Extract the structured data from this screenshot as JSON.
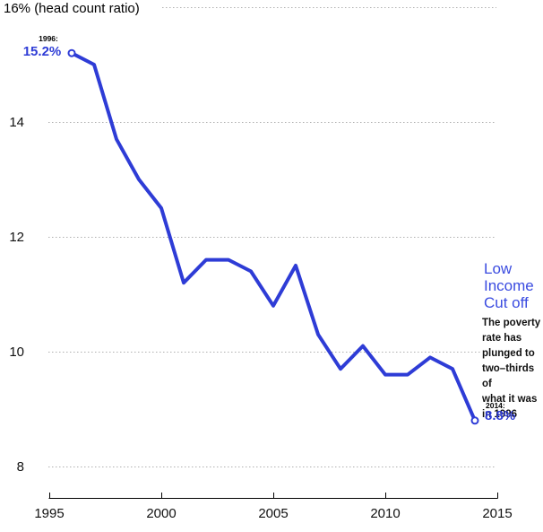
{
  "title": "16% (head count ratio)",
  "colors": {
    "accent_blue": "#2e3cd6",
    "series_label_blue": "#3a4be0",
    "gridline_gray": "#b0b0b0",
    "axis_black": "#000000"
  },
  "chart_data": {
    "type": "line",
    "series_name": "Low Income Cut off poverty rate",
    "x": [
      1996,
      1997,
      1998,
      1999,
      2000,
      2001,
      2002,
      2003,
      2004,
      2005,
      2006,
      2007,
      2008,
      2009,
      2010,
      2011,
      2012,
      2013,
      2014
    ],
    "values": [
      15.2,
      15.0,
      13.7,
      13.0,
      12.5,
      11.2,
      11.6,
      11.6,
      11.4,
      10.8,
      11.5,
      10.3,
      9.7,
      10.1,
      9.6,
      9.6,
      9.9,
      9.7,
      8.8
    ],
    "title": "16% (head count ratio)",
    "xlabel": "",
    "ylabel": "head count ratio (%)",
    "xlim": [
      1995,
      2015
    ],
    "ylim": [
      8,
      16
    ],
    "x_ticks": [
      1995,
      2000,
      2005,
      2010,
      2015
    ],
    "y_ticks": [
      8,
      10,
      12,
      14,
      16
    ],
    "grid": true,
    "legend_position": "none",
    "markers": "first and last point, open circles"
  },
  "y_axis_labels": [
    "8",
    "10",
    "12",
    "14"
  ],
  "x_axis_labels": [
    "1995",
    "2000",
    "2005",
    "2010",
    "2015"
  ],
  "annotations": {
    "start_label": "1996:",
    "start_value": "15.2%",
    "end_label": "2014:",
    "end_value": "8.8%",
    "series_label_lines": [
      "Low",
      "Income",
      "Cut off"
    ],
    "note_lines": [
      "The poverty",
      "rate has",
      "plunged to",
      "two–thirds of",
      "what it was",
      "in 1996"
    ]
  }
}
